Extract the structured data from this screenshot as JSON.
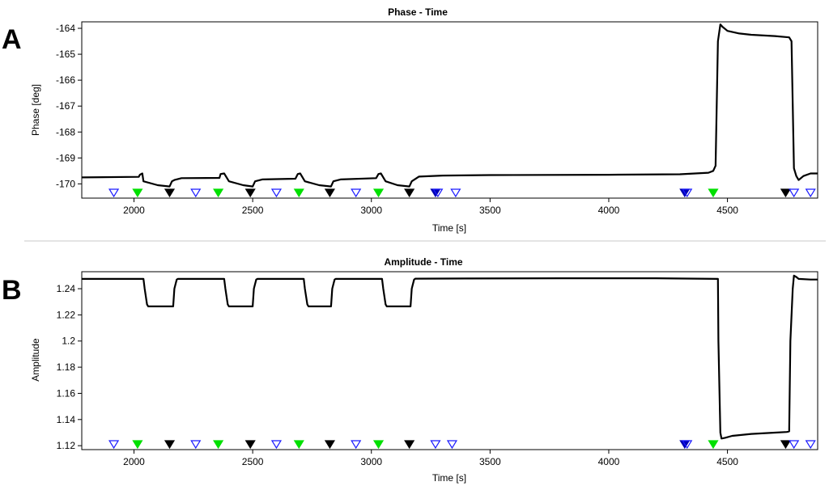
{
  "chart_data": [
    {
      "type": "line",
      "panel_letter": "A",
      "title": "Phase - Time",
      "xlabel": "Time [s]",
      "ylabel": "Phase  [deg]",
      "xlim": [
        1780,
        4880
      ],
      "ylim": [
        -170.55,
        -163.75
      ],
      "x_ticks": [
        2000,
        2500,
        3000,
        3500,
        4000,
        4500
      ],
      "y_ticks": [
        -164,
        -165,
        -166,
        -167,
        -168,
        -169,
        -170
      ],
      "grid": false,
      "series": [
        {
          "x": [
            1780,
            2020,
            2025,
            2035,
            2040,
            2100,
            2150,
            2160,
            2170,
            2200,
            2360,
            2365,
            2380,
            2400,
            2460,
            2500,
            2510,
            2540,
            2680,
            2690,
            2700,
            2720,
            2780,
            2830,
            2840,
            2870,
            3020,
            3030,
            3040,
            3060,
            3110,
            3160,
            3170,
            3200,
            3300,
            3500,
            4000,
            4300,
            4420,
            4440,
            4450,
            4460,
            4470,
            4480,
            4500,
            4550,
            4600,
            4700,
            4760,
            4770,
            4780,
            4790,
            4800,
            4820,
            4850,
            4880
          ],
          "values": [
            -169.75,
            -169.73,
            -169.65,
            -169.6,
            -169.9,
            -170.05,
            -170.1,
            -169.9,
            -169.85,
            -169.78,
            -169.77,
            -169.62,
            -169.6,
            -169.9,
            -170.05,
            -170.1,
            -169.9,
            -169.83,
            -169.8,
            -169.62,
            -169.6,
            -169.9,
            -170.05,
            -170.1,
            -169.9,
            -169.83,
            -169.78,
            -169.62,
            -169.6,
            -169.9,
            -170.05,
            -170.1,
            -169.9,
            -169.72,
            -169.68,
            -169.66,
            -169.65,
            -169.63,
            -169.57,
            -169.5,
            -169.3,
            -164.5,
            -163.85,
            -163.95,
            -164.1,
            -164.2,
            -164.25,
            -164.3,
            -164.35,
            -164.5,
            -169.4,
            -169.7,
            -169.85,
            -169.7,
            -169.6,
            -169.6
          ]
        }
      ],
      "markers": [
        {
          "x": 1915,
          "kind": "open-blue"
        },
        {
          "x": 2015,
          "kind": "green"
        },
        {
          "x": 2150,
          "kind": "black"
        },
        {
          "x": 2260,
          "kind": "open-blue"
        },
        {
          "x": 2355,
          "kind": "green"
        },
        {
          "x": 2490,
          "kind": "black"
        },
        {
          "x": 2600,
          "kind": "open-blue"
        },
        {
          "x": 2695,
          "kind": "green"
        },
        {
          "x": 2825,
          "kind": "black"
        },
        {
          "x": 2935,
          "kind": "open-blue"
        },
        {
          "x": 3030,
          "kind": "green"
        },
        {
          "x": 3160,
          "kind": "black"
        },
        {
          "x": 3270,
          "kind": "blue-solid"
        },
        {
          "x": 3280,
          "kind": "open-blue"
        },
        {
          "x": 3355,
          "kind": "open-blue"
        },
        {
          "x": 4320,
          "kind": "blue-solid"
        },
        {
          "x": 4330,
          "kind": "open-blue"
        },
        {
          "x": 4440,
          "kind": "green"
        },
        {
          "x": 4745,
          "kind": "black"
        },
        {
          "x": 4780,
          "kind": "open-blue"
        },
        {
          "x": 4850,
          "kind": "open-blue"
        }
      ]
    },
    {
      "type": "line",
      "panel_letter": "B",
      "title": "Amplitude - Time",
      "xlabel": "Time [s]",
      "ylabel": "Amplitude",
      "xlim": [
        1780,
        4880
      ],
      "ylim": [
        1.117,
        1.253
      ],
      "x_ticks": [
        2000,
        2500,
        3000,
        3500,
        4000,
        4500
      ],
      "y_ticks": [
        1.24,
        1.22,
        1.2,
        1.18,
        1.16,
        1.14,
        1.12
      ],
      "y_tick_labels": [
        "1.24",
        "1.22",
        "1.2",
        "1.18",
        "1.16",
        "1.14",
        "1.12"
      ],
      "grid": false,
      "series": [
        {
          "x": [
            1780,
            2040,
            2045,
            2055,
            2060,
            2165,
            2170,
            2180,
            2185,
            2380,
            2385,
            2395,
            2400,
            2500,
            2505,
            2515,
            2520,
            2715,
            2720,
            2730,
            2735,
            2830,
            2835,
            2845,
            2850,
            3045,
            3050,
            3060,
            3065,
            3165,
            3170,
            3180,
            3185,
            3400,
            3800,
            4200,
            4460,
            4462,
            4470,
            4475,
            4490,
            4520,
            4600,
            4700,
            4750,
            4760,
            4765,
            4775,
            4780,
            4790,
            4800,
            4850,
            4880
          ],
          "values": [
            1.2475,
            1.2475,
            1.24,
            1.228,
            1.2265,
            1.2265,
            1.24,
            1.247,
            1.2475,
            1.2475,
            1.24,
            1.228,
            1.2265,
            1.2265,
            1.24,
            1.247,
            1.2475,
            1.2475,
            1.24,
            1.228,
            1.2265,
            1.2265,
            1.24,
            1.247,
            1.2475,
            1.2475,
            1.24,
            1.228,
            1.2265,
            1.2265,
            1.24,
            1.247,
            1.2477,
            1.2478,
            1.248,
            1.248,
            1.2475,
            1.2,
            1.13,
            1.1255,
            1.126,
            1.1275,
            1.129,
            1.13,
            1.1305,
            1.131,
            1.2,
            1.24,
            1.25,
            1.249,
            1.2475,
            1.247,
            1.247
          ]
        }
      ],
      "markers": [
        {
          "x": 1915,
          "kind": "open-blue"
        },
        {
          "x": 2015,
          "kind": "green"
        },
        {
          "x": 2150,
          "kind": "black"
        },
        {
          "x": 2260,
          "kind": "open-blue"
        },
        {
          "x": 2355,
          "kind": "green"
        },
        {
          "x": 2490,
          "kind": "black"
        },
        {
          "x": 2600,
          "kind": "open-blue"
        },
        {
          "x": 2695,
          "kind": "green"
        },
        {
          "x": 2825,
          "kind": "black"
        },
        {
          "x": 2935,
          "kind": "open-blue"
        },
        {
          "x": 3030,
          "kind": "green"
        },
        {
          "x": 3160,
          "kind": "black"
        },
        {
          "x": 3270,
          "kind": "open-blue"
        },
        {
          "x": 3340,
          "kind": "open-blue"
        },
        {
          "x": 4320,
          "kind": "blue-solid"
        },
        {
          "x": 4330,
          "kind": "open-blue"
        },
        {
          "x": 4440,
          "kind": "green"
        },
        {
          "x": 4745,
          "kind": "black"
        },
        {
          "x": 4780,
          "kind": "open-blue"
        },
        {
          "x": 4850,
          "kind": "open-blue"
        }
      ]
    }
  ],
  "colors": {
    "line": "#000000",
    "axis": "#000000",
    "marker_open_blue": "#1a1aff",
    "marker_blue_solid": "#0000b4",
    "marker_green": "#00e000",
    "marker_black": "#000000",
    "separator": "#c8c8c8"
  }
}
